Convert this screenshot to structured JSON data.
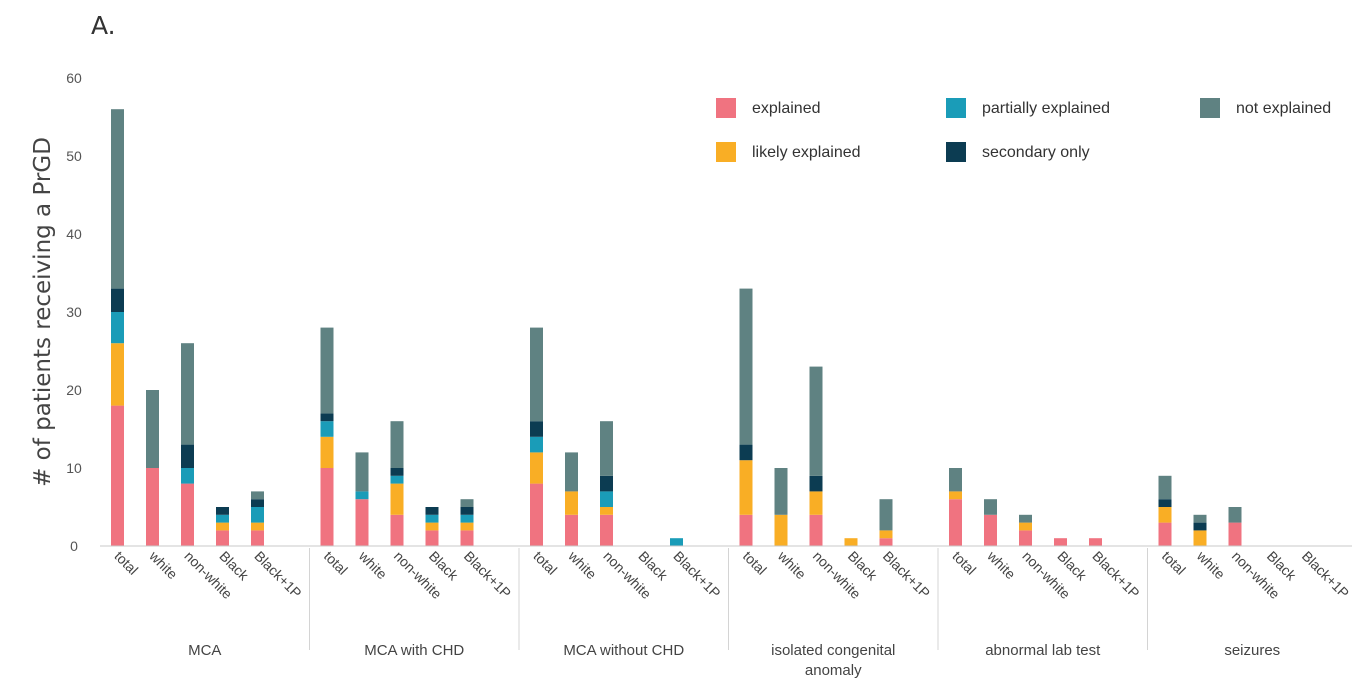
{
  "chart_data": {
    "type": "bar",
    "stacked": true,
    "panel_label": "A.",
    "ylabel": "# of patients receiving a PrGD",
    "ylim": [
      0,
      60
    ],
    "yticks": [
      0,
      10,
      20,
      30,
      40,
      50,
      60
    ],
    "grid": false,
    "legend_position": "top-right",
    "legend": [
      {
        "key": "explained",
        "label": "explained",
        "color": "#F07380"
      },
      {
        "key": "likely",
        "label": "likely explained",
        "color": "#F9AE25"
      },
      {
        "key": "partial",
        "label": "partially explained",
        "color": "#1A9CB8"
      },
      {
        "key": "secondary",
        "label": "secondary only",
        "color": "#0C3C52"
      },
      {
        "key": "not",
        "label": "not explained",
        "color": "#5F8282"
      }
    ],
    "categories": [
      "total",
      "white",
      "non-white",
      "Black",
      "Black+1P"
    ],
    "groups": [
      {
        "label_lines": [
          "MCA"
        ],
        "bars": [
          {
            "explained": 18,
            "likely": 8,
            "partial": 4,
            "secondary": 3,
            "not": 23
          },
          {
            "explained": 10,
            "likely": 0,
            "partial": 0,
            "secondary": 0,
            "not": 10
          },
          {
            "explained": 8,
            "likely": 0,
            "partial": 2,
            "secondary": 3,
            "not": 13
          },
          {
            "explained": 2,
            "likely": 1,
            "partial": 1,
            "secondary": 1,
            "not": 0
          },
          {
            "explained": 2,
            "likely": 1,
            "partial": 2,
            "secondary": 1,
            "not": 1
          }
        ]
      },
      {
        "label_lines": [
          "MCA with CHD"
        ],
        "bars": [
          {
            "explained": 10,
            "likely": 4,
            "partial": 2,
            "secondary": 1,
            "not": 11
          },
          {
            "explained": 6,
            "likely": 0,
            "partial": 1,
            "secondary": 0,
            "not": 5
          },
          {
            "explained": 4,
            "likely": 4,
            "partial": 1,
            "secondary": 1,
            "not": 6
          },
          {
            "explained": 2,
            "likely": 1,
            "partial": 1,
            "secondary": 1,
            "not": 0
          },
          {
            "explained": 2,
            "likely": 1,
            "partial": 1,
            "secondary": 1,
            "not": 1
          }
        ]
      },
      {
        "label_lines": [
          "MCA without CHD"
        ],
        "bars": [
          {
            "explained": 8,
            "likely": 4,
            "partial": 2,
            "secondary": 2,
            "not": 12
          },
          {
            "explained": 4,
            "likely": 3,
            "partial": 0,
            "secondary": 0,
            "not": 5
          },
          {
            "explained": 4,
            "likely": 1,
            "partial": 2,
            "secondary": 2,
            "not": 7
          },
          {
            "explained": 0,
            "likely": 0,
            "partial": 0,
            "secondary": 0,
            "not": 0
          },
          {
            "explained": 0,
            "likely": 0,
            "partial": 1,
            "secondary": 0,
            "not": 0
          }
        ]
      },
      {
        "label_lines": [
          "isolated congenital",
          "anomaly"
        ],
        "bars": [
          {
            "explained": 4,
            "likely": 7,
            "partial": 0,
            "secondary": 2,
            "not": 20
          },
          {
            "explained": 0,
            "likely": 4,
            "partial": 0,
            "secondary": 0,
            "not": 6
          },
          {
            "explained": 4,
            "likely": 3,
            "partial": 0,
            "secondary": 2,
            "not": 14
          },
          {
            "explained": 0,
            "likely": 1,
            "partial": 0,
            "secondary": 0,
            "not": 0
          },
          {
            "explained": 1,
            "likely": 1,
            "partial": 0,
            "secondary": 0,
            "not": 4
          }
        ]
      },
      {
        "label_lines": [
          "abnormal lab test"
        ],
        "bars": [
          {
            "explained": 6,
            "likely": 1,
            "partial": 0,
            "secondary": 0,
            "not": 3
          },
          {
            "explained": 4,
            "likely": 0,
            "partial": 0,
            "secondary": 0,
            "not": 2
          },
          {
            "explained": 2,
            "likely": 1,
            "partial": 0,
            "secondary": 0,
            "not": 1
          },
          {
            "explained": 1,
            "likely": 0,
            "partial": 0,
            "secondary": 0,
            "not": 0
          },
          {
            "explained": 1,
            "likely": 0,
            "partial": 0,
            "secondary": 0,
            "not": 0
          }
        ]
      },
      {
        "label_lines": [
          "seizures"
        ],
        "bars": [
          {
            "explained": 3,
            "likely": 2,
            "partial": 0,
            "secondary": 1,
            "not": 3
          },
          {
            "explained": 0,
            "likely": 2,
            "partial": 0,
            "secondary": 1,
            "not": 1
          },
          {
            "explained": 3,
            "likely": 0,
            "partial": 0,
            "secondary": 0,
            "not": 2
          },
          {
            "explained": 0,
            "likely": 0,
            "partial": 0,
            "secondary": 0,
            "not": 0
          },
          {
            "explained": 0,
            "likely": 0,
            "partial": 0,
            "secondary": 0,
            "not": 0
          }
        ]
      }
    ]
  }
}
